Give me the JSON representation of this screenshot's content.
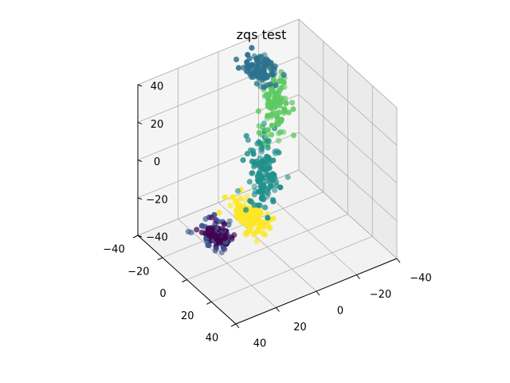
{
  "chart_data": {
    "type": "scatter",
    "projection": "3d",
    "title": "zqs test",
    "xlabel": "",
    "ylabel": "",
    "zlabel": "",
    "xlim": [
      -40,
      40
    ],
    "ylim": [
      -40,
      40
    ],
    "zlim": [
      -40,
      40
    ],
    "x_ticks": [
      40,
      20,
      0,
      -20,
      -40
    ],
    "x_tick_labels": [
      "40",
      "20",
      "0",
      "−20",
      "−40"
    ],
    "y_ticks": [
      40,
      20,
      0,
      -20,
      -40
    ],
    "y_tick_labels": [
      "40",
      "20",
      "0",
      "−20",
      "−40"
    ],
    "z_ticks": [
      40,
      20,
      0,
      -20,
      -40
    ],
    "z_tick_labels": [
      "40",
      "20",
      "0",
      "−20",
      "−40"
    ],
    "grid": true,
    "legend": "none",
    "colormap": "viridis",
    "series": [
      {
        "color": "#440154",
        "center": [
          12,
          -20,
          -40
        ],
        "spread": [
          4,
          6,
          2
        ],
        "count": 55
      },
      {
        "color": "#3b528b",
        "center": [
          15,
          -18,
          -38
        ],
        "spread": [
          5,
          7,
          3
        ],
        "count": 70
      },
      {
        "color": "#2c728e",
        "center": [
          -15,
          -30,
          30
        ],
        "spread": [
          4,
          8,
          4
        ],
        "count": 90
      },
      {
        "color": "#21918c",
        "center": [
          5,
          5,
          5
        ],
        "spread": [
          5,
          6,
          14
        ],
        "count": 130
      },
      {
        "color": "#5ec962",
        "center": [
          0,
          6,
          40
        ],
        "spread": [
          4,
          6,
          14
        ],
        "count": 110
      },
      {
        "color": "#fde725",
        "center": [
          30,
          35,
          10
        ],
        "spread": [
          4,
          10,
          4
        ],
        "count": 120
      }
    ]
  }
}
